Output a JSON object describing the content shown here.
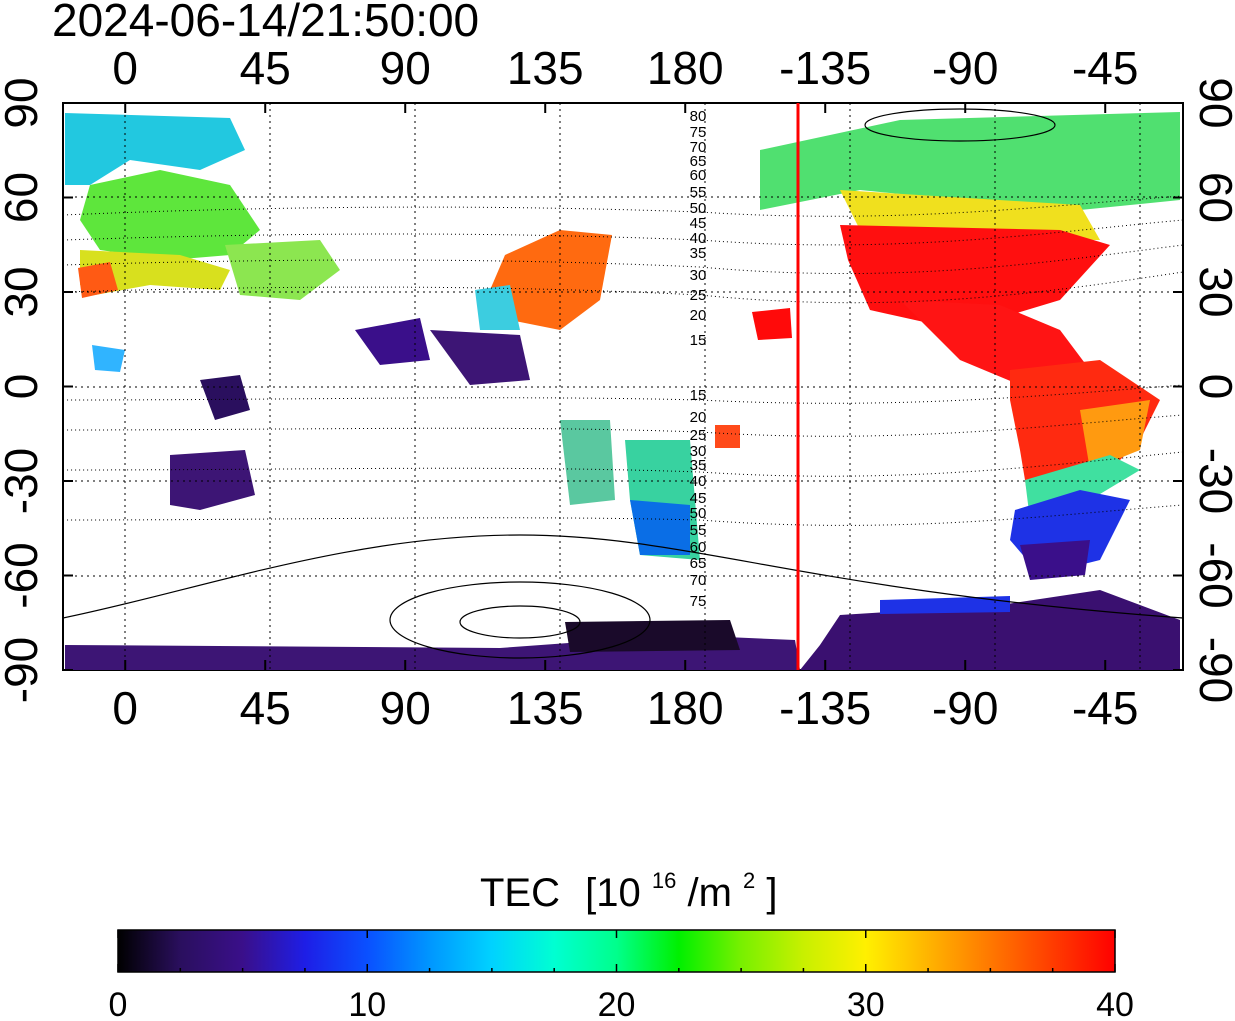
{
  "timestamp": "2024-06-14/21:50:00",
  "map": {
    "x_tick_labels": [
      "0",
      "45",
      "90",
      "135",
      "180",
      "-135",
      "-90",
      "-45"
    ],
    "y_tick_labels_left": [
      "90",
      "60",
      "30",
      "0",
      "-30",
      "-60",
      "-90"
    ],
    "y_tick_labels_right": [
      "90",
      "60",
      "30",
      "0",
      "-30",
      "-60",
      "-90"
    ],
    "longitude_range_deg": [
      -20,
      340
    ],
    "latitude_range_deg": [
      -90,
      90
    ],
    "grid": true,
    "terminator_longitude_deg": 207,
    "terminator_color": "#ff0000",
    "contour_labels": [
      "80",
      "75",
      "70",
      "65",
      "60",
      "55",
      "50",
      "45",
      "40",
      "35",
      "30",
      "25",
      "20",
      "15",
      "15",
      "20",
      "25",
      "30",
      "35",
      "40",
      "45",
      "50",
      "55",
      "60",
      "65",
      "70",
      "75"
    ]
  },
  "colorbar": {
    "title": "TEC",
    "unit_base": "[10",
    "unit_exp1": "16",
    "unit_mid": "/m",
    "unit_exp2": "2",
    "unit_end": "]",
    "tick_labels": [
      "0",
      "10",
      "20",
      "30",
      "40"
    ],
    "range": [
      0,
      40
    ],
    "colors": [
      "#000000",
      "#2a0f5e",
      "#3a0f8a",
      "#1e1ee6",
      "#0a50ff",
      "#0096ff",
      "#00d2ff",
      "#00ffd2",
      "#00ff8c",
      "#00f000",
      "#78f000",
      "#c8f000",
      "#fff000",
      "#ffb400",
      "#ff7800",
      "#ff3c00",
      "#ff0000"
    ]
  }
}
